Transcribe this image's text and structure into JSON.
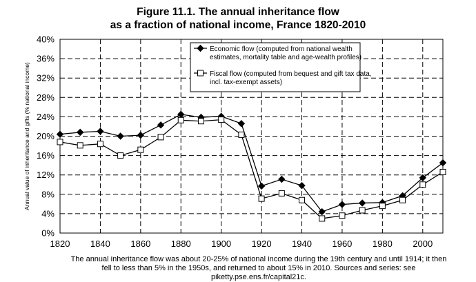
{
  "title": "Figure 11.1. The annual inheritance flow",
  "subtitle": "as a fraction of national income, France 1820-2010",
  "caption": "The annual inheritance flow was about 20-25% of national income during the 19th century and until 1914; it then fell to less than 5% in the 1950s, and returned to about 15% in 2010. Sources and series: see piketty.pse.ens.fr/capital21c.",
  "chart_data": {
    "type": "line",
    "title": "Figure 11.1. The annual inheritance flow as a fraction of national income, France 1820-2010",
    "ylabel": "Annual value of inheritance and gifts (% national income)",
    "xlabel": "",
    "xlim": [
      1820,
      2010
    ],
    "ylim": [
      0,
      40
    ],
    "x_ticks": [
      "1820",
      "1840",
      "1860",
      "1880",
      "1900",
      "1920",
      "1940",
      "1960",
      "1980",
      "2000"
    ],
    "y_ticks": [
      "0%",
      "4%",
      "8%",
      "12%",
      "16%",
      "20%",
      "24%",
      "28%",
      "32%",
      "36%",
      "40%"
    ],
    "grid": true,
    "legend_position": "top-right",
    "series": [
      {
        "name": "Economic flow (computed from national wealth estimates, mortality table and age-wealth profiles)",
        "legend_lines": [
          "Economic flow (computed from national wealth",
          "estimates, mortality table and age-wealth profiles)"
        ],
        "marker": "filled-diamond",
        "color": "#000000",
        "x": [
          1820,
          1830,
          1840,
          1850,
          1860,
          1870,
          1880,
          1890,
          1900,
          1910,
          1920,
          1930,
          1940,
          1950,
          1960,
          1970,
          1980,
          1990,
          2000,
          2010
        ],
        "values": [
          20.4,
          20.8,
          21.0,
          20.0,
          20.2,
          22.3,
          24.5,
          23.9,
          24.1,
          22.6,
          9.7,
          11.1,
          9.8,
          4.4,
          5.9,
          6.2,
          6.3,
          7.7,
          11.4,
          14.5
        ]
      },
      {
        "name": "Fiscal flow (computed from bequest and gift tax data, incl. tax-exempt assets)",
        "legend_lines": [
          "Fiscal flow (computed from bequest and gift tax data,",
          "incl. tax-exempt assets)"
        ],
        "marker": "open-square",
        "color": "#000000",
        "x": [
          1820,
          1830,
          1840,
          1850,
          1860,
          1870,
          1880,
          1890,
          1900,
          1910,
          1920,
          1930,
          1940,
          1950,
          1960,
          1970,
          1980,
          1990,
          2000,
          2010
        ],
        "values": [
          18.8,
          18.1,
          18.4,
          16.0,
          17.2,
          19.8,
          23.3,
          23.1,
          23.4,
          20.3,
          7.1,
          8.2,
          6.8,
          3.0,
          3.6,
          4.7,
          5.6,
          6.8,
          10.0,
          12.6
        ]
      }
    ]
  }
}
